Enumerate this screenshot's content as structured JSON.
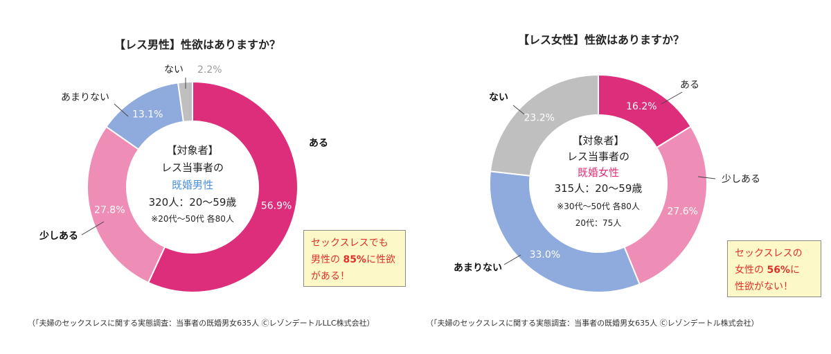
{
  "chart_data": [
    {
      "type": "pie",
      "title": "【レス男性】性欲はありますか？",
      "slices": [
        {
          "label": "ある",
          "value": 56.9,
          "color": "#dd2e7c"
        },
        {
          "label": "少しある",
          "value": 27.8,
          "color": "#ee8db5"
        },
        {
          "label": "あまりない",
          "value": 13.1,
          "color": "#8faadc"
        },
        {
          "label": "ない",
          "value": 2.2,
          "color": "#bfbfbf"
        }
      ],
      "center": {
        "line1": "【対象者】",
        "line2": "レス当事者の",
        "line3": "既婚男性",
        "line4": "320人：20～59歳",
        "line5": "※20代～50代 各80人"
      },
      "note": [
        "セックスレスでも",
        "男性の ",
        "85%",
        "に性欲",
        "がある！"
      ],
      "source": "（「夫婦のセックスレスに関する実態調査：当事者の既婚男女635人 ⒸレゾンデートルLLC株式会社）"
    },
    {
      "type": "pie",
      "title": "【レス女性】性欲はありますか？",
      "slices": [
        {
          "label": "ある",
          "value": 16.2,
          "color": "#dd2e7c"
        },
        {
          "label": "少しある",
          "value": 27.6,
          "color": "#ee8db5"
        },
        {
          "label": "あまりない",
          "value": 33.0,
          "color": "#8faadc"
        },
        {
          "label": "ない",
          "value": 23.2,
          "color": "#bfbfbf"
        }
      ],
      "center": {
        "line1": "【対象者】",
        "line2": "レス当事者の",
        "line3": "既婚女性",
        "line4": "315人：20～59歳",
        "line5": "※30代～50代 各80人",
        "line6": "20代：75人"
      },
      "note": [
        "セックスレスの",
        "女性の ",
        "56%",
        "に",
        "性欲がない！"
      ],
      "source": "（「夫婦のセックスレスに関する実態調査：当事者の既婚男女635人 Ⓒレゾンデートル株式会社）"
    }
  ]
}
